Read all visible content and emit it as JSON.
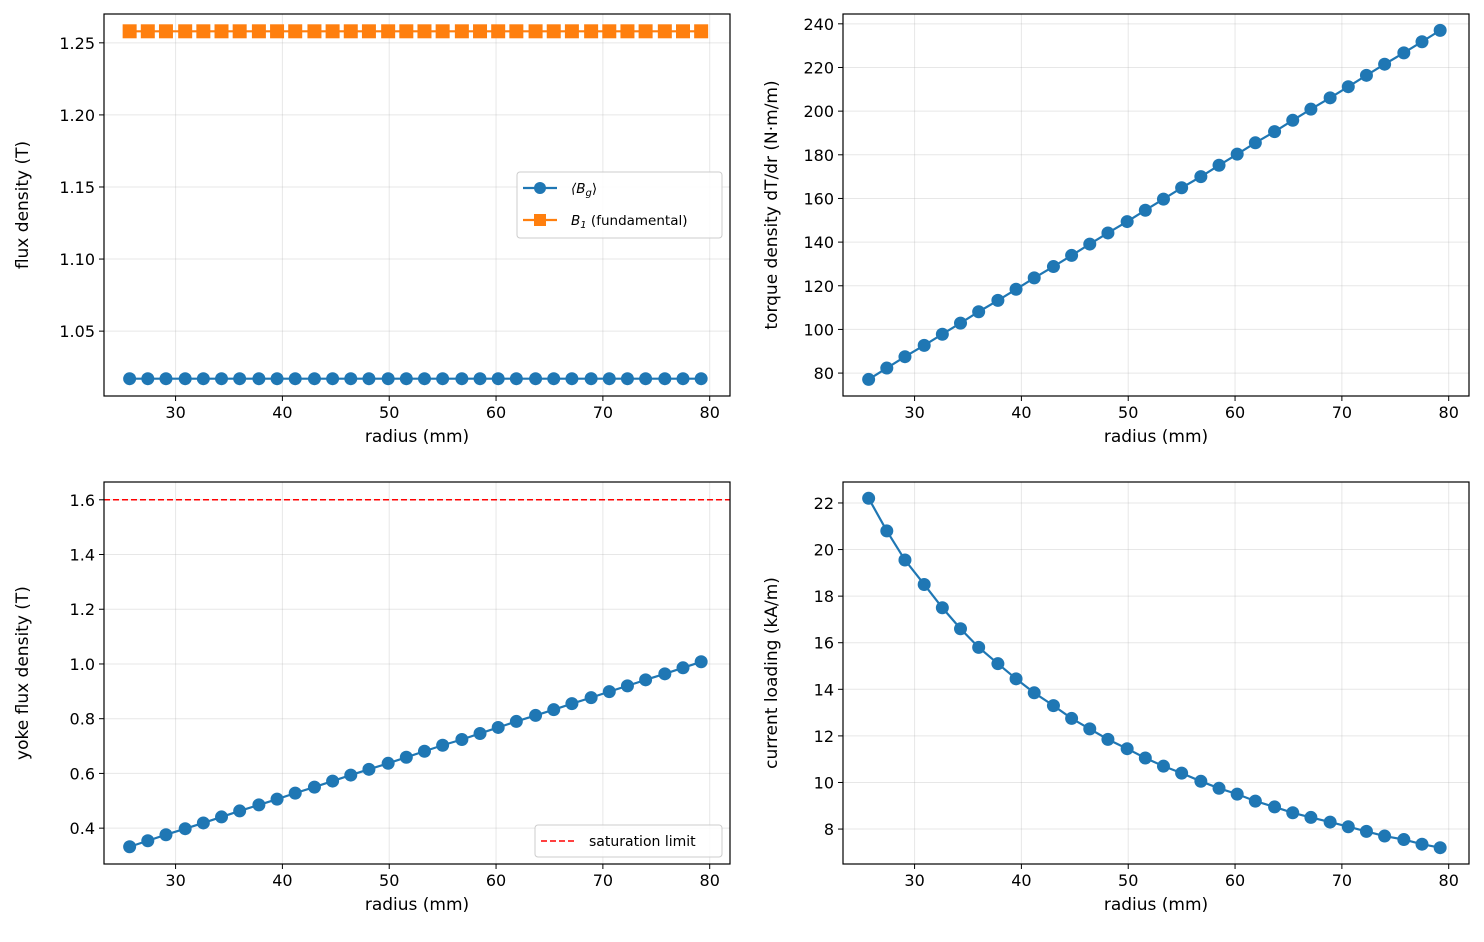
{
  "chart_data": [
    {
      "type": "line",
      "xlabel": "radius (mm)",
      "ylabel": "flux density (T)",
      "xlim": [
        23.3,
        81.9
      ],
      "ylim": [
        1.005,
        1.27
      ],
      "xticks": [
        30,
        40,
        50,
        60,
        70,
        80
      ],
      "yticks": [
        1.05,
        1.1,
        1.15,
        1.2,
        1.25
      ],
      "ytick_labels": [
        "1.05",
        "1.10",
        "1.15",
        "1.20",
        "1.25"
      ],
      "grid": true,
      "legend": "center-right",
      "x": [
        25.7,
        27.4,
        29.1,
        30.9,
        32.6,
        34.3,
        36.0,
        37.8,
        39.5,
        41.2,
        43.0,
        44.7,
        46.4,
        48.1,
        49.9,
        51.6,
        53.3,
        55.0,
        56.8,
        58.5,
        60.2,
        61.9,
        63.7,
        65.4,
        67.1,
        68.9,
        70.6,
        72.3,
        74.0,
        75.8,
        77.5,
        79.2
      ],
      "series": [
        {
          "name": "⟨B",
          "name_sub": "g",
          "name_suffix": "⟩",
          "color": "#1f77b4",
          "marker": "circle",
          "values": [
            1.017,
            1.017,
            1.017,
            1.017,
            1.017,
            1.017,
            1.017,
            1.017,
            1.017,
            1.017,
            1.017,
            1.017,
            1.017,
            1.017,
            1.017,
            1.017,
            1.017,
            1.017,
            1.017,
            1.017,
            1.017,
            1.017,
            1.017,
            1.017,
            1.017,
            1.017,
            1.017,
            1.017,
            1.017,
            1.017,
            1.017,
            1.017
          ]
        },
        {
          "name": "B",
          "name_sub": "1",
          "name_suffix": " (fundamental)",
          "color": "#ff7f0e",
          "marker": "square",
          "values": [
            1.258,
            1.258,
            1.258,
            1.258,
            1.258,
            1.258,
            1.258,
            1.258,
            1.258,
            1.258,
            1.258,
            1.258,
            1.258,
            1.258,
            1.258,
            1.258,
            1.258,
            1.258,
            1.258,
            1.258,
            1.258,
            1.258,
            1.258,
            1.258,
            1.258,
            1.258,
            1.258,
            1.258,
            1.258,
            1.258,
            1.258,
            1.258
          ]
        }
      ]
    },
    {
      "type": "line",
      "xlabel": "radius (mm)",
      "ylabel": "torque density dT/dr (N·m/m)",
      "xlim": [
        23.3,
        81.9
      ],
      "ylim": [
        69.5,
        244.5
      ],
      "xticks": [
        30,
        40,
        50,
        60,
        70,
        80
      ],
      "yticks": [
        80,
        100,
        120,
        140,
        160,
        180,
        200,
        220,
        240
      ],
      "ytick_labels": [
        "80",
        "100",
        "120",
        "140",
        "160",
        "180",
        "200",
        "220",
        "240"
      ],
      "grid": true,
      "x": [
        25.7,
        27.4,
        29.1,
        30.9,
        32.6,
        34.3,
        36.0,
        37.8,
        39.5,
        41.2,
        43.0,
        44.7,
        46.4,
        48.1,
        49.9,
        51.6,
        53.3,
        55.0,
        56.8,
        58.5,
        60.2,
        61.9,
        63.7,
        65.4,
        67.1,
        68.9,
        70.6,
        72.3,
        74.0,
        75.8,
        77.5,
        79.2
      ],
      "series": [
        {
          "color": "#1f77b4",
          "marker": "circle",
          "values": [
            77.1,
            82.3,
            87.5,
            92.7,
            97.8,
            102.9,
            108.1,
            113.3,
            118.4,
            123.6,
            128.8,
            133.9,
            139.1,
            144.2,
            149.4,
            154.6,
            159.7,
            164.9,
            170.0,
            175.2,
            180.3,
            185.5,
            190.6,
            195.8,
            200.9,
            206.1,
            211.2,
            216.4,
            221.5,
            226.7,
            231.8,
            237.0
          ]
        }
      ]
    },
    {
      "type": "line",
      "xlabel": "radius (mm)",
      "ylabel": "yoke flux density (T)",
      "xlim": [
        23.3,
        81.9
      ],
      "ylim": [
        0.269,
        1.665
      ],
      "xticks": [
        30,
        40,
        50,
        60,
        70,
        80
      ],
      "yticks": [
        0.4,
        0.6,
        0.8,
        1.0,
        1.2,
        1.4,
        1.6
      ],
      "ytick_labels": [
        "0.4",
        "0.6",
        "0.8",
        "1.0",
        "1.2",
        "1.4",
        "1.6"
      ],
      "grid": true,
      "legend": "bottom-right",
      "hline": {
        "y": 1.6,
        "label": "saturation limit",
        "color": "#ff0000"
      },
      "x": [
        25.7,
        27.4,
        29.1,
        30.9,
        32.6,
        34.3,
        36.0,
        37.8,
        39.5,
        41.2,
        43.0,
        44.7,
        46.4,
        48.1,
        49.9,
        51.6,
        53.3,
        55.0,
        56.8,
        58.5,
        60.2,
        61.9,
        63.7,
        65.4,
        67.1,
        68.9,
        70.6,
        72.3,
        74.0,
        75.8,
        77.5,
        79.2
      ],
      "series": [
        {
          "color": "#1f77b4",
          "marker": "circle",
          "values": [
            0.332,
            0.354,
            0.376,
            0.398,
            0.419,
            0.441,
            0.463,
            0.485,
            0.506,
            0.528,
            0.55,
            0.572,
            0.594,
            0.615,
            0.637,
            0.659,
            0.681,
            0.703,
            0.724,
            0.746,
            0.768,
            0.79,
            0.812,
            0.833,
            0.855,
            0.877,
            0.899,
            0.92,
            0.942,
            0.964,
            0.986,
            1.008
          ]
        }
      ]
    },
    {
      "type": "line",
      "xlabel": "radius (mm)",
      "ylabel": "current loading (kA/m)",
      "xlim": [
        23.3,
        81.9
      ],
      "ylim": [
        6.5,
        22.9
      ],
      "xticks": [
        30,
        40,
        50,
        60,
        70,
        80
      ],
      "yticks": [
        8,
        10,
        12,
        14,
        16,
        18,
        20,
        22
      ],
      "ytick_labels": [
        "8",
        "10",
        "12",
        "14",
        "16",
        "18",
        "20",
        "22"
      ],
      "grid": true,
      "x": [
        25.7,
        27.4,
        29.1,
        30.9,
        32.6,
        34.3,
        36.0,
        37.8,
        39.5,
        41.2,
        43.0,
        44.7,
        46.4,
        48.1,
        49.9,
        51.6,
        53.3,
        55.0,
        56.8,
        58.5,
        60.2,
        61.9,
        63.7,
        65.4,
        67.1,
        68.9,
        70.6,
        72.3,
        74.0,
        75.8,
        77.5,
        79.2
      ],
      "series": [
        {
          "color": "#1f77b4",
          "marker": "circle",
          "values": [
            22.2,
            20.8,
            19.55,
            18.5,
            17.5,
            16.6,
            15.8,
            15.1,
            14.45,
            13.85,
            13.3,
            12.75,
            12.3,
            11.85,
            11.45,
            11.05,
            10.7,
            10.4,
            10.05,
            9.75,
            9.5,
            9.2,
            8.95,
            8.7,
            8.5,
            8.3,
            8.1,
            7.9,
            7.7,
            7.55,
            7.35,
            7.2
          ]
        }
      ]
    }
  ]
}
